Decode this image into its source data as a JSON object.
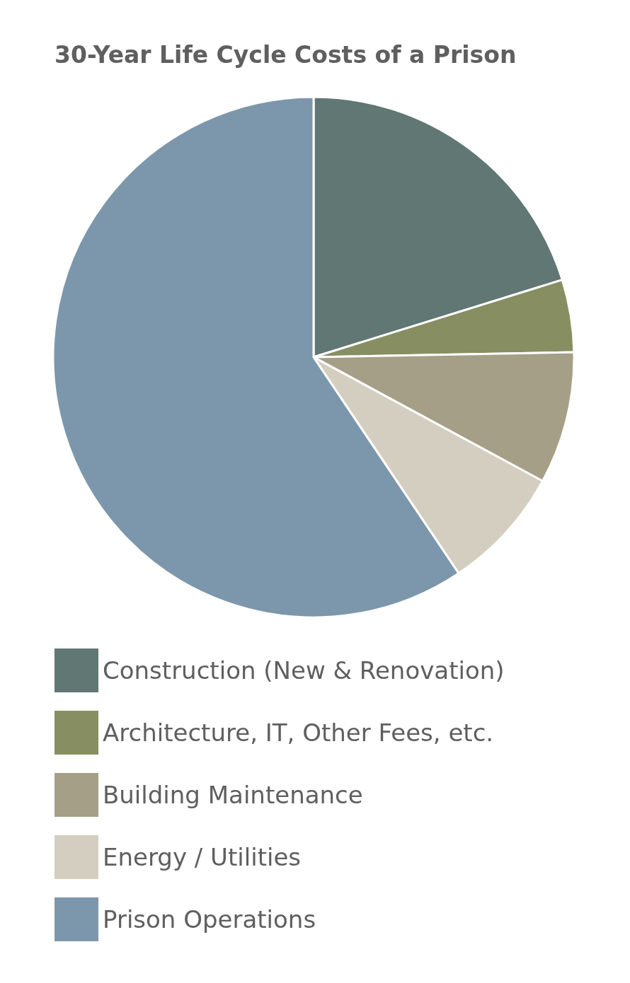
{
  "chart_data": {
    "type": "pie",
    "title": "30-Year Life Cycle Costs of a Prison",
    "categories": [
      "Construction (New & Renovation)",
      "Architecture, IT, Other Fees, etc.",
      "Building Maintenance",
      "Energy / Utilities",
      "Prison Operations"
    ],
    "values": [
      20.2,
      4.5,
      8.2,
      7.7,
      59.4
    ],
    "colors": [
      "#607773",
      "#878f62",
      "#a59f87",
      "#d4cec0",
      "#7c97ab"
    ],
    "legend": "bottom left"
  }
}
